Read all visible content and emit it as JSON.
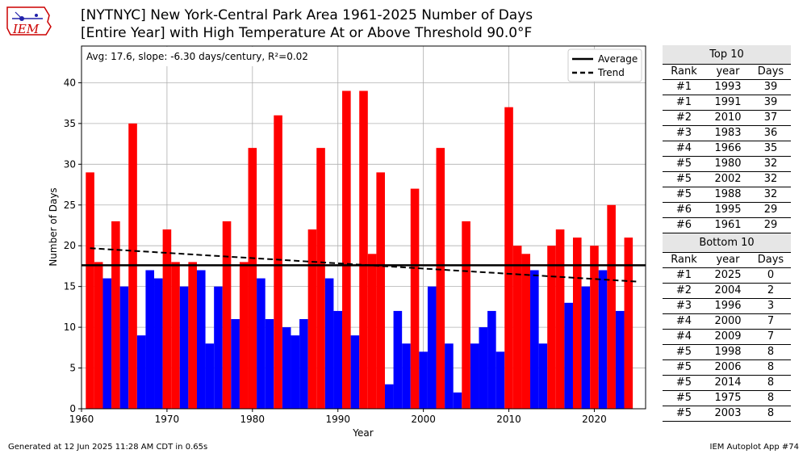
{
  "title_line1": "[NYTNYC] New York-Central Park Area 1961-2025 Number of Days",
  "title_line2": "[Entire Year] with High Temperature At or Above Threshold 90.0°F",
  "logo_text": "IEM",
  "stats_text": "Avg: 17.6, slope: -6.30 days/century, R²=0.02",
  "legend": {
    "average": "Average",
    "trend": "Trend"
  },
  "footer_left": "Generated at 12 Jun 2025 11:28 AM CDT in 0.65s",
  "footer_right": "IEM Autoplot App #74",
  "colors": {
    "above": "#ff0000",
    "below": "#0000ff"
  },
  "top10": {
    "heading": "Top 10",
    "columns": [
      "Rank",
      "year",
      "Days"
    ],
    "rows": [
      [
        "#1",
        "1993",
        "39"
      ],
      [
        "#1",
        "1991",
        "39"
      ],
      [
        "#2",
        "2010",
        "37"
      ],
      [
        "#3",
        "1983",
        "36"
      ],
      [
        "#4",
        "1966",
        "35"
      ],
      [
        "#5",
        "1980",
        "32"
      ],
      [
        "#5",
        "2002",
        "32"
      ],
      [
        "#5",
        "1988",
        "32"
      ],
      [
        "#6",
        "1995",
        "29"
      ],
      [
        "#6",
        "1961",
        "29"
      ]
    ]
  },
  "bottom10": {
    "heading": "Bottom 10",
    "columns": [
      "Rank",
      "year",
      "Days"
    ],
    "rows": [
      [
        "#1",
        "2025",
        "0"
      ],
      [
        "#2",
        "2004",
        "2"
      ],
      [
        "#3",
        "1996",
        "3"
      ],
      [
        "#4",
        "2000",
        "7"
      ],
      [
        "#4",
        "2009",
        "7"
      ],
      [
        "#5",
        "1998",
        "8"
      ],
      [
        "#5",
        "2006",
        "8"
      ],
      [
        "#5",
        "2014",
        "8"
      ],
      [
        "#5",
        "1975",
        "8"
      ],
      [
        "#5",
        "2003",
        "8"
      ]
    ]
  },
  "chart_data": {
    "type": "bar",
    "xlabel": "Year",
    "ylabel": "Number of Days",
    "xlim": [
      1960,
      2026
    ],
    "ylim": [
      0,
      44.5
    ],
    "xticks": [
      1960,
      1970,
      1980,
      1990,
      2000,
      2010,
      2020
    ],
    "yticks": [
      0,
      5,
      10,
      15,
      20,
      25,
      30,
      35,
      40
    ],
    "grid": true,
    "legend_position": "top-right",
    "average": 17.6,
    "trend": {
      "start": [
        1961,
        19.7
      ],
      "end": [
        2025,
        15.6
      ]
    },
    "years": [
      1961,
      1962,
      1963,
      1964,
      1965,
      1966,
      1967,
      1968,
      1969,
      1970,
      1971,
      1972,
      1973,
      1974,
      1975,
      1976,
      1977,
      1978,
      1979,
      1980,
      1981,
      1982,
      1983,
      1984,
      1985,
      1986,
      1987,
      1988,
      1989,
      1990,
      1991,
      1992,
      1993,
      1994,
      1995,
      1996,
      1997,
      1998,
      1999,
      2000,
      2001,
      2002,
      2003,
      2004,
      2005,
      2006,
      2007,
      2008,
      2009,
      2010,
      2011,
      2012,
      2013,
      2014,
      2015,
      2016,
      2017,
      2018,
      2019,
      2020,
      2021,
      2022,
      2023,
      2024,
      2025
    ],
    "values": [
      29,
      18,
      16,
      23,
      15,
      35,
      9,
      17,
      16,
      22,
      18,
      15,
      18,
      17,
      8,
      15,
      23,
      11,
      18,
      32,
      16,
      11,
      36,
      10,
      9,
      11,
      22,
      32,
      16,
      12,
      39,
      9,
      39,
      19,
      29,
      3,
      12,
      8,
      27,
      7,
      15,
      32,
      8,
      2,
      23,
      8,
      10,
      12,
      7,
      37,
      20,
      19,
      17,
      8,
      20,
      22,
      13,
      21,
      15,
      20,
      17,
      25,
      12,
      21,
      0
    ]
  }
}
